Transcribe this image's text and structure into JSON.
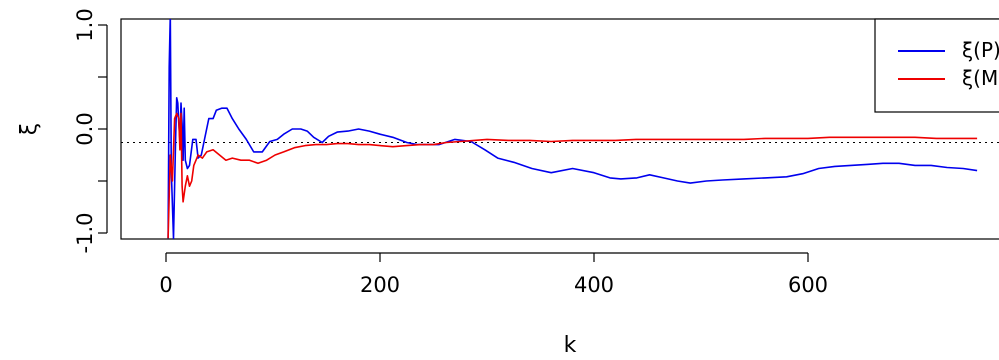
{
  "chart_data": {
    "type": "line",
    "xlabel": "k",
    "ylabel": "ξ",
    "xlim": [
      -20,
      765
    ],
    "ylim": [
      -1.05,
      1.1
    ],
    "x_ticks": [
      0,
      200,
      400,
      600
    ],
    "x_tick_labels": [
      "0",
      "200",
      "400",
      "600"
    ],
    "y_ticks": [
      -1.0,
      0.0,
      1.0
    ],
    "y_tick_labels": [
      "-1.0",
      "0.0",
      "1.0"
    ],
    "reference_line": {
      "y": -0.13,
      "style": "dotted"
    },
    "legend": {
      "placement": "top-right",
      "entries": [
        "ξ(P)",
        "ξ(M)"
      ]
    },
    "series": [
      {
        "name": "ξ(P)",
        "color": "#0000ee",
        "points": [
          [
            2,
            -1.05
          ],
          [
            3,
            0.6
          ],
          [
            4,
            1.1
          ],
          [
            5,
            -0.4
          ],
          [
            7,
            -1.05
          ],
          [
            9,
            -0.1
          ],
          [
            10,
            0.3
          ],
          [
            11,
            0.25
          ],
          [
            12,
            0.05
          ],
          [
            13,
            -0.1
          ],
          [
            14,
            0.25
          ],
          [
            15,
            0.05
          ],
          [
            16,
            -0.3
          ],
          [
            17,
            0.2
          ],
          [
            18,
            -0.3
          ],
          [
            20,
            -0.38
          ],
          [
            22,
            -0.35
          ],
          [
            25,
            -0.1
          ],
          [
            28,
            -0.1
          ],
          [
            30,
            -0.28
          ],
          [
            33,
            -0.25
          ],
          [
            36,
            -0.1
          ],
          [
            40,
            0.1
          ],
          [
            44,
            0.1
          ],
          [
            47,
            0.18
          ],
          [
            52,
            0.2
          ],
          [
            57,
            0.2
          ],
          [
            62,
            0.1
          ],
          [
            68,
            0.0
          ],
          [
            75,
            -0.1
          ],
          [
            82,
            -0.22
          ],
          [
            90,
            -0.22
          ],
          [
            97,
            -0.12
          ],
          [
            104,
            -0.1
          ],
          [
            110,
            -0.05
          ],
          [
            118,
            0.0
          ],
          [
            126,
            0.0
          ],
          [
            132,
            -0.02
          ],
          [
            138,
            -0.08
          ],
          [
            146,
            -0.13
          ],
          [
            152,
            -0.07
          ],
          [
            160,
            -0.03
          ],
          [
            170,
            -0.02
          ],
          [
            180,
            0.0
          ],
          [
            190,
            -0.02
          ],
          [
            200,
            -0.05
          ],
          [
            212,
            -0.08
          ],
          [
            225,
            -0.13
          ],
          [
            235,
            -0.15
          ],
          [
            245,
            -0.15
          ],
          [
            255,
            -0.15
          ],
          [
            270,
            -0.1
          ],
          [
            285,
            -0.12
          ],
          [
            298,
            -0.2
          ],
          [
            310,
            -0.28
          ],
          [
            325,
            -0.32
          ],
          [
            342,
            -0.38
          ],
          [
            360,
            -0.42
          ],
          [
            380,
            -0.38
          ],
          [
            400,
            -0.42
          ],
          [
            415,
            -0.47
          ],
          [
            425,
            -0.48
          ],
          [
            440,
            -0.47
          ],
          [
            452,
            -0.44
          ],
          [
            465,
            -0.47
          ],
          [
            478,
            -0.5
          ],
          [
            490,
            -0.52
          ],
          [
            505,
            -0.5
          ],
          [
            520,
            -0.49
          ],
          [
            540,
            -0.48
          ],
          [
            560,
            -0.47
          ],
          [
            580,
            -0.46
          ],
          [
            595,
            -0.43
          ],
          [
            610,
            -0.38
          ],
          [
            625,
            -0.36
          ],
          [
            640,
            -0.35
          ],
          [
            655,
            -0.34
          ],
          [
            670,
            -0.33
          ],
          [
            685,
            -0.33
          ],
          [
            700,
            -0.35
          ],
          [
            715,
            -0.35
          ],
          [
            730,
            -0.37
          ],
          [
            745,
            -0.38
          ],
          [
            758,
            -0.4
          ]
        ]
      },
      {
        "name": "ξ(M)",
        "color": "#ee0000",
        "points": [
          [
            2,
            -1.05
          ],
          [
            4,
            -0.25
          ],
          [
            6,
            -0.5
          ],
          [
            8,
            0.1
          ],
          [
            10,
            0.15
          ],
          [
            12,
            0.1
          ],
          [
            13,
            -0.2
          ],
          [
            14,
            0.15
          ],
          [
            15,
            -0.55
          ],
          [
            16,
            -0.7
          ],
          [
            18,
            -0.55
          ],
          [
            20,
            -0.45
          ],
          [
            22,
            -0.55
          ],
          [
            24,
            -0.5
          ],
          [
            26,
            -0.35
          ],
          [
            28,
            -0.3
          ],
          [
            30,
            -0.25
          ],
          [
            34,
            -0.28
          ],
          [
            38,
            -0.22
          ],
          [
            44,
            -0.2
          ],
          [
            50,
            -0.25
          ],
          [
            56,
            -0.3
          ],
          [
            62,
            -0.28
          ],
          [
            70,
            -0.3
          ],
          [
            78,
            -0.3
          ],
          [
            86,
            -0.33
          ],
          [
            94,
            -0.3
          ],
          [
            102,
            -0.25
          ],
          [
            110,
            -0.22
          ],
          [
            120,
            -0.18
          ],
          [
            130,
            -0.16
          ],
          [
            140,
            -0.15
          ],
          [
            150,
            -0.15
          ],
          [
            160,
            -0.14
          ],
          [
            170,
            -0.14
          ],
          [
            180,
            -0.15
          ],
          [
            190,
            -0.15
          ],
          [
            200,
            -0.16
          ],
          [
            212,
            -0.17
          ],
          [
            225,
            -0.16
          ],
          [
            238,
            -0.15
          ],
          [
            250,
            -0.15
          ],
          [
            262,
            -0.13
          ],
          [
            275,
            -0.12
          ],
          [
            288,
            -0.11
          ],
          [
            300,
            -0.1
          ],
          [
            320,
            -0.11
          ],
          [
            340,
            -0.11
          ],
          [
            360,
            -0.12
          ],
          [
            380,
            -0.11
          ],
          [
            400,
            -0.11
          ],
          [
            420,
            -0.11
          ],
          [
            440,
            -0.1
          ],
          [
            460,
            -0.1
          ],
          [
            480,
            -0.1
          ],
          [
            500,
            -0.1
          ],
          [
            520,
            -0.1
          ],
          [
            540,
            -0.1
          ],
          [
            560,
            -0.09
          ],
          [
            580,
            -0.09
          ],
          [
            600,
            -0.09
          ],
          [
            620,
            -0.08
          ],
          [
            640,
            -0.08
          ],
          [
            660,
            -0.08
          ],
          [
            680,
            -0.08
          ],
          [
            700,
            -0.08
          ],
          [
            720,
            -0.09
          ],
          [
            740,
            -0.09
          ],
          [
            758,
            -0.09
          ]
        ]
      }
    ]
  }
}
